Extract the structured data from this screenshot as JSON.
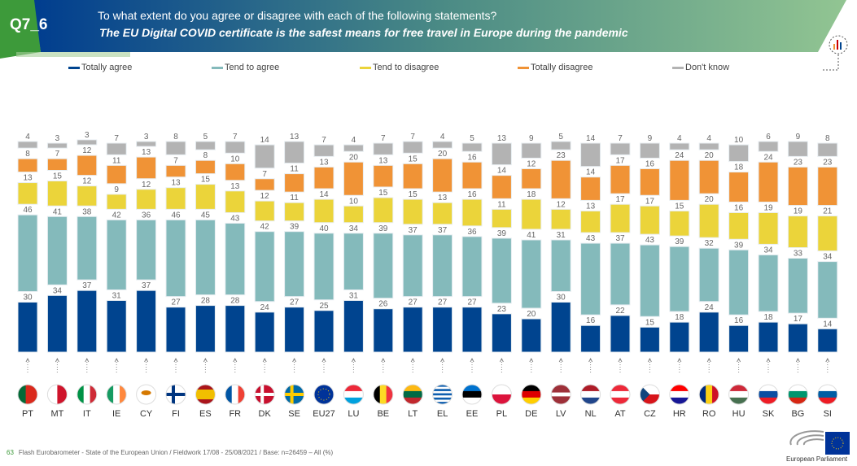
{
  "header": {
    "question_id": "Q7_6",
    "question": "To what extent do you agree or disagree with each of the following statements?",
    "statement": "The EU Digital COVID certificate is the safest means for free travel in Europe during the pandemic"
  },
  "colors": {
    "totally_agree": "#00448f",
    "tend_to_agree": "#84babb",
    "tend_to_disagree": "#ebd43a",
    "totally_disagree": "#f09336",
    "dont_know": "#b3b3b3",
    "header_green": "#3d9a3a",
    "header_blue": "#003d8f"
  },
  "footer": {
    "page": "63",
    "text": "Flash Eurobarometer - State of the European Union  /  Fieldwork 17/08 - 25/08/2021  /  Base: n=26459 – All (%)",
    "logo_text": "European Parliament"
  },
  "chart_data": {
    "type": "bar",
    "stacked": true,
    "unit": "%",
    "legend_position": "top",
    "series_names": [
      "Totally agree",
      "Tend to agree",
      "Tend to disagree",
      "Totally disagree",
      "Don't know"
    ],
    "categories": [
      "PT",
      "MT",
      "IT",
      "IE",
      "CY",
      "FI",
      "ES",
      "FR",
      "DK",
      "SE",
      "EU27",
      "LU",
      "BE",
      "LT",
      "EL",
      "EE",
      "PL",
      "DE",
      "LV",
      "NL",
      "AT",
      "CZ",
      "HR",
      "RO",
      "HU",
      "SK",
      "BG",
      "SI"
    ],
    "series": [
      {
        "name": "Totally agree",
        "values": [
          30,
          34,
          37,
          31,
          37,
          27,
          28,
          28,
          24,
          27,
          25,
          31,
          26,
          27,
          27,
          27,
          23,
          20,
          30,
          16,
          22,
          15,
          18,
          24,
          16,
          18,
          17,
          14
        ]
      },
      {
        "name": "Tend to agree",
        "values": [
          46,
          41,
          38,
          42,
          36,
          46,
          45,
          43,
          42,
          39,
          40,
          34,
          39,
          37,
          37,
          36,
          39,
          41,
          31,
          43,
          37,
          43,
          39,
          32,
          39,
          34,
          33,
          34
        ]
      },
      {
        "name": "Tend to disagree",
        "values": [
          13,
          15,
          12,
          9,
          12,
          13,
          15,
          13,
          12,
          11,
          14,
          10,
          15,
          15,
          13,
          16,
          11,
          18,
          12,
          13,
          17,
          17,
          15,
          20,
          16,
          19,
          19,
          21
        ]
      },
      {
        "name": "Totally disagree",
        "values": [
          8,
          7,
          12,
          11,
          13,
          7,
          8,
          10,
          7,
          11,
          13,
          20,
          13,
          15,
          20,
          16,
          14,
          12,
          23,
          14,
          17,
          16,
          24,
          20,
          18,
          24,
          23,
          23
        ]
      },
      {
        "name": "Don't know",
        "values": [
          4,
          3,
          3,
          7,
          3,
          8,
          5,
          7,
          14,
          13,
          7,
          4,
          7,
          7,
          4,
          5,
          13,
          9,
          5,
          14,
          7,
          9,
          4,
          4,
          10,
          6,
          9,
          8
        ]
      }
    ]
  }
}
